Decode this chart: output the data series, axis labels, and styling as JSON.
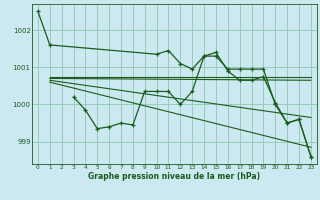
{
  "bg_color": "#cce8f0",
  "grid_color": "#99ccbb",
  "line_color": "#1a5c1a",
  "xlabel": "Graphe pression niveau de la mer (hPa)",
  "xlim": [
    -0.5,
    23.5
  ],
  "ylim": [
    998.4,
    1002.7
  ],
  "yticks": [
    999,
    1000,
    1001,
    1002
  ],
  "xticks": [
    0,
    1,
    2,
    3,
    4,
    5,
    6,
    7,
    8,
    9,
    10,
    11,
    12,
    13,
    14,
    15,
    16,
    17,
    18,
    19,
    20,
    21,
    22,
    23
  ],
  "series1_x": [
    0,
    1,
    10,
    11,
    12,
    13,
    14,
    15,
    16,
    17,
    18,
    19,
    20,
    21,
    22,
    23
  ],
  "series1_y": [
    1002.5,
    1001.6,
    1001.35,
    1001.45,
    1001.1,
    1000.95,
    1001.3,
    1001.4,
    1000.9,
    1000.65,
    1000.65,
    1000.75,
    1000.05,
    999.5,
    999.6,
    998.6
  ],
  "series2_x": [
    3,
    4,
    5,
    6,
    7,
    8,
    9,
    10,
    11,
    12,
    13,
    14,
    15,
    16,
    17,
    18,
    19,
    20,
    21,
    22,
    23
  ],
  "series2_y": [
    1000.2,
    999.85,
    999.35,
    999.4,
    999.5,
    999.45,
    1000.35,
    1000.35,
    1000.35,
    1000.0,
    1000.35,
    1001.3,
    1001.3,
    1000.95,
    1000.95,
    1000.95,
    1000.95,
    1000.0,
    999.5,
    999.6,
    998.6
  ],
  "trend1_x": [
    1,
    23
  ],
  "trend1_y": [
    1000.75,
    1000.75
  ],
  "trend2_x": [
    1,
    23
  ],
  "trend2_y": [
    1000.7,
    1000.65
  ],
  "trend3_x": [
    1,
    23
  ],
  "trend3_y": [
    1000.65,
    999.65
  ],
  "trend4_x": [
    1,
    23
  ],
  "trend4_y": [
    1000.6,
    998.85
  ]
}
